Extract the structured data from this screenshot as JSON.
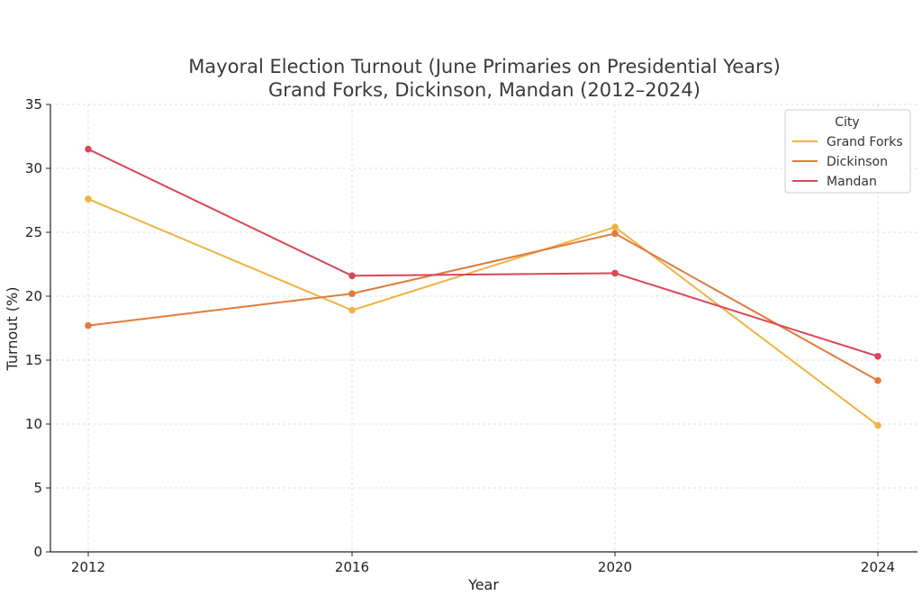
{
  "chart_data": {
    "type": "line",
    "title_line1": "Mayoral Election Turnout (June Primaries on Presidential Years)",
    "title_line2": "Grand Forks, Dickinson, Mandan (2012–2024)",
    "xlabel": "Year",
    "ylabel": "Turnout (%)",
    "x": [
      2012,
      2016,
      2020,
      2024
    ],
    "x_tick_labels": [
      "2012",
      "2016",
      "2020",
      "2024"
    ],
    "ylim": [
      0,
      35
    ],
    "y_ticks": [
      0,
      5,
      10,
      15,
      20,
      25,
      30,
      35
    ],
    "grid": true,
    "legend": {
      "title": "City",
      "placement": "top-right"
    },
    "series": [
      {
        "name": "Grand Forks",
        "color": "#f0b341",
        "values": [
          27.6,
          18.9,
          25.4,
          9.9
        ]
      },
      {
        "name": "Dickinson",
        "color": "#e07b3c",
        "values": [
          17.7,
          20.2,
          24.9,
          13.4
        ]
      },
      {
        "name": "Mandan",
        "color": "#d9475a",
        "values": [
          31.5,
          21.6,
          21.8,
          15.3
        ]
      }
    ]
  }
}
